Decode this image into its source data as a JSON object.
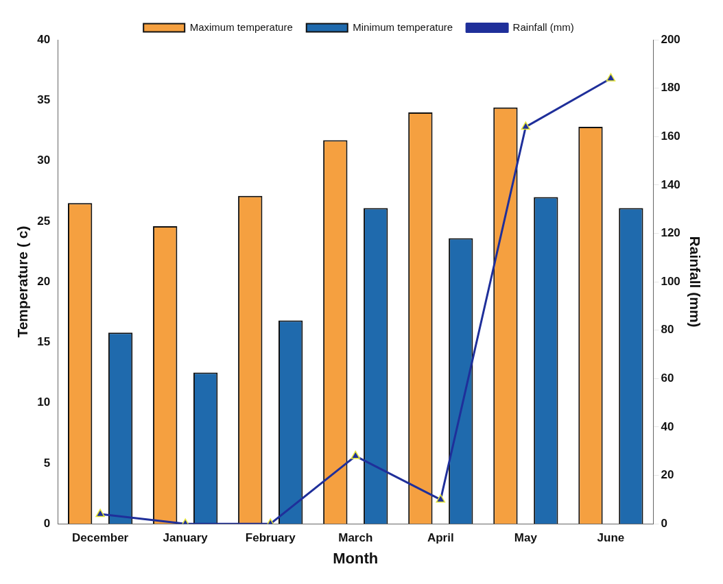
{
  "chart_data": {
    "type": "bar",
    "xlabel": "Month",
    "ylabel": "Temperature ( c)",
    "y2label": "Rainfall (mm)",
    "categories": [
      "December",
      "January",
      "February",
      "March",
      "April",
      "May",
      "June"
    ],
    "series": [
      {
        "name": "Maximum temperature",
        "color": "#f5a040",
        "values": [
          26.5,
          24.6,
          27.1,
          31.7,
          34.0,
          34.4,
          32.8
        ]
      },
      {
        "name": "Minimum temperature",
        "color": "#1f6aad",
        "values": [
          15.8,
          12.5,
          16.8,
          26.1,
          23.6,
          27.0,
          26.1
        ]
      },
      {
        "name": "Rainfall (mm)",
        "type": "line",
        "axis": "y2",
        "color": "#1f2f9a",
        "marker": "triangle",
        "values": [
          4,
          0,
          0,
          28,
          10,
          164,
          184
        ]
      }
    ],
    "ylim": [
      0,
      40
    ],
    "yticks": [
      0,
      5,
      10,
      15,
      20,
      25,
      30,
      35,
      40
    ],
    "y2lim": [
      0,
      200
    ],
    "y2ticks": [
      0,
      20,
      40,
      60,
      80,
      100,
      120,
      140,
      160,
      180,
      200
    ],
    "grid": false,
    "legend": "top"
  }
}
